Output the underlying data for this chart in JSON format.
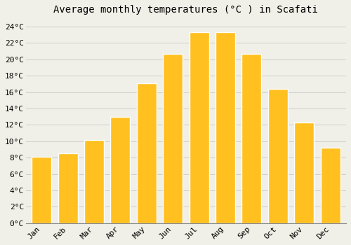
{
  "title": "Average monthly temperatures (°C ) in Scafati",
  "months": [
    "Jan",
    "Feb",
    "Mar",
    "Apr",
    "May",
    "Jun",
    "Jul",
    "Aug",
    "Sep",
    "Oct",
    "Nov",
    "Dec"
  ],
  "values": [
    8.1,
    8.5,
    10.2,
    13.0,
    17.1,
    20.7,
    23.3,
    23.3,
    20.7,
    16.4,
    12.3,
    9.2
  ],
  "bar_color": "#FFC020",
  "bar_edge_color": "#FFFFFF",
  "background_color": "#F0F0E8",
  "grid_color": "#CCCCCC",
  "ylim": [
    0,
    25
  ],
  "ytick_step": 2,
  "title_fontsize": 10,
  "tick_fontsize": 8,
  "font_family": "monospace"
}
